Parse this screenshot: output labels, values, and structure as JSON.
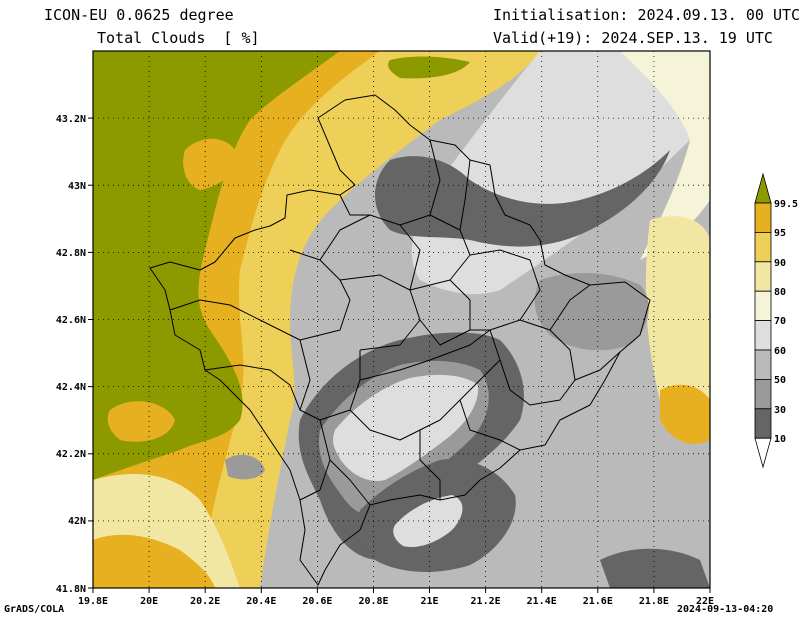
{
  "header": {
    "model": "ICON-EU 0.0625 degree",
    "variable": "Total Clouds  [ %]",
    "init": "Initialisation: 2024.09.13. 00 UTC",
    "valid": "Valid(+19): 2024.SEP.13. 19 UTC"
  },
  "axes": {
    "x_ticks": [
      "19.8E",
      "20E",
      "20.2E",
      "20.4E",
      "20.6E",
      "20.8E",
      "21E",
      "21.2E",
      "21.4E",
      "21.6E",
      "21.8E",
      "22E"
    ],
    "y_ticks": [
      "43.2N",
      "43N",
      "42.8N",
      "42.6N",
      "42.4N",
      "42.2N",
      "42N",
      "41.8N"
    ]
  },
  "colorbar": {
    "labels": [
      "99.5",
      "95",
      "90",
      "80",
      "70",
      "60",
      "50",
      "30",
      "10"
    ],
    "colors": {
      "over": "#8c9a00",
      "95": "#e6b020",
      "90": "#eed058",
      "80": "#f2e7a2",
      "70": "#f6f4d8",
      "60": "#dedede",
      "50": "#bababa",
      "30": "#9a9a9a",
      "10": "#656565",
      "under": "#ffffff"
    }
  },
  "footer": {
    "left": "GrADS/COLA",
    "right": "2024-09-13-04:20"
  }
}
